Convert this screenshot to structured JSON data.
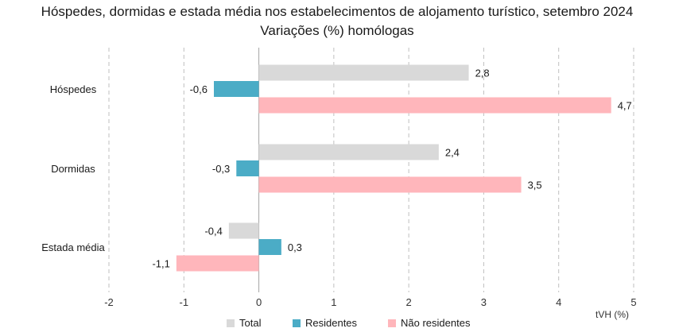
{
  "chart_data": {
    "type": "bar",
    "orientation": "horizontal",
    "title": "Hóspedes, dormidas e estada média nos estabelecimentos de alojamento turístico, setembro 2024",
    "subtitle": "Variações (%) homólogas",
    "xlabel": "tVH (%)",
    "ylabel": "",
    "categories": [
      "Hóspedes",
      "Dormidas",
      "Estada média"
    ],
    "series": [
      {
        "name": "Total",
        "color": "#d9d9d9",
        "values": [
          2.8,
          2.4,
          -0.4
        ],
        "labels": [
          "2,8",
          "2,4",
          "-0,4"
        ]
      },
      {
        "name": "Residentes",
        "color": "#4bacc6",
        "values": [
          -0.6,
          -0.3,
          0.3
        ],
        "labels": [
          "-0,6",
          "-0,3",
          "0,3"
        ]
      },
      {
        "name": "Não residentes",
        "color": "#ffb6bb",
        "values": [
          4.7,
          3.5,
          -1.1
        ],
        "labels": [
          "4,7",
          "3,5",
          "-1,1"
        ]
      }
    ],
    "xlim": [
      -2,
      5
    ],
    "xticks": [
      -2,
      -1,
      0,
      1,
      2,
      3,
      4,
      5
    ],
    "xtick_labels": [
      "-2",
      "-1",
      "0",
      "1",
      "2",
      "3",
      "4",
      "5"
    ],
    "grid": "vertical dashed",
    "legend_position": "bottom"
  }
}
